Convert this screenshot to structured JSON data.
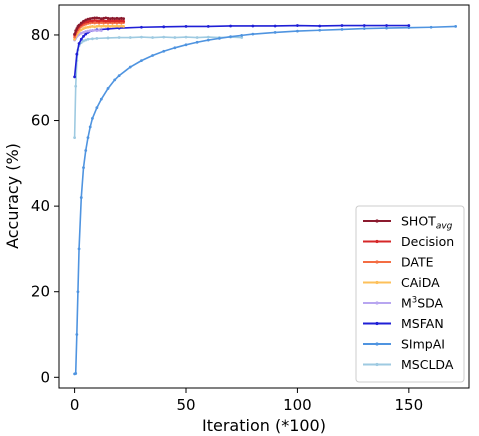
{
  "chart_data": {
    "type": "line",
    "xlabel": "Iteration (*100)",
    "ylabel": "Accuracy (%)",
    "xlim": [
      -7,
      177
    ],
    "ylim": [
      -2.5,
      87
    ],
    "xticks": [
      0,
      50,
      100,
      150
    ],
    "yticks": [
      0,
      20,
      40,
      60,
      80
    ],
    "grid": false,
    "legend_position": "lower-right",
    "series": [
      {
        "name": "SHOTavg",
        "label_main": "SHOT",
        "label_sub": "avg",
        "color": "#8b1a2e",
        "x": [
          0,
          0.5,
          1,
          1.5,
          2,
          3,
          4,
          5,
          6,
          7,
          8,
          9,
          10,
          11,
          12,
          13,
          14,
          15,
          16,
          17,
          18,
          19,
          20,
          21,
          22
        ],
        "y": [
          80.2,
          81.0,
          81.5,
          82.0,
          82.3,
          82.8,
          83.2,
          83.5,
          83.7,
          83.8,
          83.9,
          84.0,
          84.0,
          83.9,
          83.8,
          83.9,
          84.0,
          83.9,
          83.8,
          83.9,
          83.8,
          83.9,
          83.8,
          83.9,
          83.8
        ]
      },
      {
        "name": "Decision",
        "color": "#d62728",
        "x": [
          0,
          0.5,
          1,
          1.5,
          2,
          3,
          4,
          5,
          6,
          7,
          8,
          9,
          10,
          11,
          12,
          13,
          14,
          15,
          16,
          17,
          18,
          19,
          20,
          21,
          22
        ],
        "y": [
          80.0,
          80.6,
          81.2,
          81.7,
          82.0,
          82.4,
          82.8,
          83.0,
          83.1,
          83.3,
          83.2,
          83.4,
          83.3,
          83.2,
          83.4,
          83.3,
          83.2,
          83.3,
          83.2,
          83.3,
          83.2,
          83.3,
          83.2,
          83.3,
          83.2
        ]
      },
      {
        "name": "DATE",
        "color": "#f46d43",
        "x": [
          0,
          0.5,
          1,
          1.5,
          2,
          3,
          4,
          5,
          6,
          7,
          8,
          9,
          10,
          11,
          12,
          13,
          14,
          15,
          16,
          17,
          18,
          19,
          20,
          21,
          22
        ],
        "y": [
          79.5,
          80.2,
          80.8,
          81.2,
          81.5,
          82.0,
          82.3,
          82.5,
          82.7,
          82.8,
          82.9,
          82.8,
          82.9,
          82.8,
          82.9,
          82.8,
          82.9,
          82.8,
          82.9,
          82.8,
          82.9,
          82.8,
          82.9,
          82.8,
          82.9
        ]
      },
      {
        "name": "CAiDA",
        "color": "#fdc05a",
        "x": [
          0,
          0.5,
          1,
          1.5,
          2,
          3,
          4,
          5,
          6,
          7,
          8,
          9,
          10,
          11,
          12,
          13,
          14,
          15,
          16,
          17,
          18,
          19,
          20,
          21,
          22
        ],
        "y": [
          79.0,
          79.6,
          80.1,
          80.5,
          80.8,
          81.2,
          81.5,
          81.7,
          81.8,
          81.9,
          82.0,
          81.9,
          82.0,
          82.1,
          82.0,
          82.1,
          82.0,
          82.1,
          82.0,
          82.1,
          82.0,
          82.1,
          82.0,
          82.1,
          82.0
        ]
      },
      {
        "name": "M3SDA",
        "label_main": "M",
        "label_sup": "3",
        "label_rest": "SDA",
        "color": "#b8a6f0",
        "x": [
          0,
          0.5,
          1,
          1.5,
          2,
          3,
          4,
          5,
          6,
          7,
          8,
          9,
          10,
          11,
          12
        ],
        "y": [
          78.8,
          79.2,
          79.6,
          79.9,
          80.1,
          80.4,
          80.6,
          80.8,
          80.9,
          81.0,
          81.0,
          81.1,
          81.0,
          81.1,
          81.0
        ]
      },
      {
        "name": "MSFAN",
        "color": "#1f1fd6",
        "x": [
          0,
          1,
          2,
          3,
          4,
          5,
          6,
          8,
          10,
          15,
          20,
          30,
          40,
          50,
          60,
          70,
          80,
          90,
          100,
          110,
          120,
          130,
          140,
          150
        ],
        "y": [
          70.2,
          75.5,
          78.0,
          79.0,
          79.7,
          80.2,
          80.6,
          81.0,
          81.2,
          81.4,
          81.6,
          81.8,
          81.9,
          82.0,
          82.0,
          82.1,
          82.1,
          82.1,
          82.2,
          82.1,
          82.2,
          82.2,
          82.2,
          82.2
        ]
      },
      {
        "name": "SImpAI",
        "color": "#4f94e0",
        "x": [
          0,
          0.5,
          1,
          1.5,
          2,
          3,
          4,
          5,
          6,
          7,
          8,
          10,
          12,
          15,
          18,
          20,
          25,
          30,
          35,
          40,
          45,
          50,
          55,
          60,
          65,
          70,
          75,
          80,
          90,
          100,
          110,
          120,
          130,
          140,
          150,
          160,
          171
        ],
        "y": [
          0.8,
          0.9,
          10.0,
          20.0,
          30.0,
          42.0,
          49.0,
          53.0,
          56.0,
          58.5,
          60.5,
          63.0,
          65.0,
          67.5,
          69.5,
          70.5,
          72.5,
          74.0,
          75.2,
          76.2,
          77.0,
          77.7,
          78.3,
          78.8,
          79.2,
          79.6,
          79.9,
          80.2,
          80.6,
          80.9,
          81.1,
          81.3,
          81.5,
          81.6,
          81.7,
          81.8,
          82.0
        ]
      },
      {
        "name": "MSCLDA",
        "color": "#9ecae1",
        "x": [
          0,
          0.5,
          1,
          1.5,
          2,
          3,
          4,
          5,
          6,
          8,
          10,
          15,
          20,
          25,
          30,
          35,
          40,
          45,
          50,
          55,
          60,
          65,
          70,
          75
        ],
        "y": [
          56.0,
          68.0,
          74.0,
          76.5,
          77.5,
          78.2,
          78.6,
          78.8,
          79.0,
          79.1,
          79.2,
          79.3,
          79.4,
          79.4,
          79.5,
          79.4,
          79.5,
          79.4,
          79.5,
          79.4,
          79.5,
          79.4,
          79.5,
          79.4
        ]
      }
    ]
  }
}
